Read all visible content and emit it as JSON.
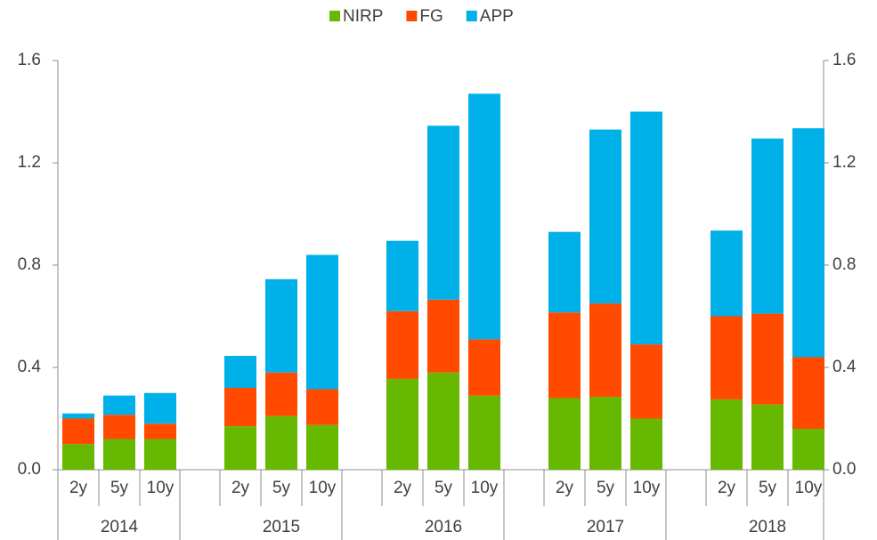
{
  "chart_data": {
    "type": "bar",
    "stacked": true,
    "categories": [
      "2y",
      "5y",
      "10y",
      "2y",
      "5y",
      "10y",
      "2y",
      "5y",
      "10y",
      "2y",
      "5y",
      "10y",
      "2y",
      "5y",
      "10y"
    ],
    "group_labels": [
      "2014",
      "2015",
      "2016",
      "2017",
      "2018"
    ],
    "series": [
      {
        "name": "NIRP",
        "color": "#66b800",
        "values": [
          0.1,
          0.12,
          0.12,
          0.17,
          0.21,
          0.175,
          0.355,
          0.38,
          0.29,
          0.28,
          0.285,
          0.2,
          0.275,
          0.255,
          0.16
        ]
      },
      {
        "name": "FG",
        "color": "#ff4a00",
        "values": [
          0.1,
          0.095,
          0.06,
          0.15,
          0.17,
          0.14,
          0.265,
          0.285,
          0.22,
          0.335,
          0.365,
          0.29,
          0.325,
          0.355,
          0.28
        ]
      },
      {
        "name": "APP",
        "color": "#00b0e8",
        "values": [
          0.02,
          0.075,
          0.12,
          0.125,
          0.365,
          0.525,
          0.275,
          0.68,
          0.96,
          0.315,
          0.68,
          0.91,
          0.335,
          0.685,
          0.895
        ]
      }
    ],
    "ylim": [
      0,
      1.6
    ],
    "yticks": [
      {
        "value": 0,
        "label": "0.0"
      },
      0.4,
      0.8,
      1.2,
      1.6
    ],
    "y2lim": [
      0,
      1.6
    ],
    "y2ticks": [
      {
        "value": 0,
        "label": "0.0"
      },
      0.4,
      0.8,
      1.2,
      1.6
    ],
    "legend": "top"
  }
}
